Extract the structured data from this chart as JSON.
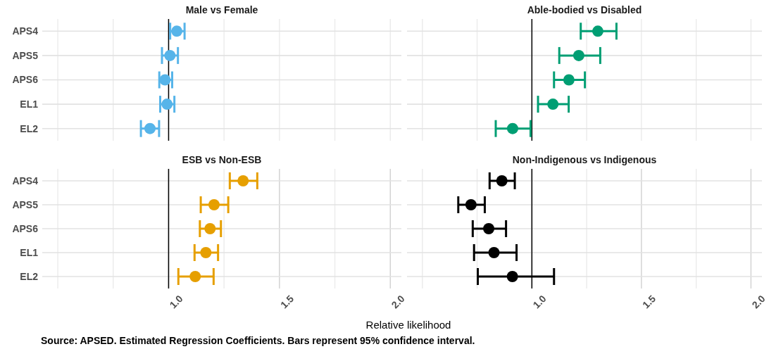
{
  "chart_data": [
    {
      "type": "scatter",
      "title": "Male vs Female",
      "orientation": "horizontal",
      "categories": [
        "APS4",
        "APS5",
        "APS6",
        "EL1",
        "EL2"
      ],
      "marker": "circle",
      "grid": true,
      "tick_labels": "y",
      "xlim": [
        0.43,
        2.05
      ],
      "xticks": [
        {
          "value": 0.5,
          "label": null
        },
        {
          "value": 0.75,
          "label": null
        },
        {
          "value": 1.0,
          "label": null
        },
        {
          "value": 1.25,
          "label": null
        },
        {
          "value": 1.5,
          "label": null
        },
        {
          "value": 1.75,
          "label": null
        },
        {
          "value": 2.0,
          "label": null
        }
      ],
      "ref_lines": [
        {
          "axis": "x",
          "value": 1,
          "color": "#000000"
        }
      ],
      "series": [
        {
          "color": "#56b4e9",
          "values": [
            1.037,
            1.006,
            0.984,
            0.993,
            0.916
          ],
          "errors": [
            [
              1.007,
              1.072
            ],
            [
              0.97,
              1.042
            ],
            [
              0.958,
              1.016
            ],
            [
              0.962,
              1.026
            ],
            [
              0.875,
              0.957
            ]
          ]
        }
      ]
    },
    {
      "type": "scatter",
      "title": "Able-bodied vs Disabled",
      "orientation": "horizontal",
      "categories": [
        null,
        null,
        null,
        null,
        null
      ],
      "marker": "circle",
      "grid": true,
      "tick_labels": false,
      "xlim": [
        0.43,
        2.05
      ],
      "xticks": [
        {
          "value": 0.5,
          "label": null
        },
        {
          "value": 0.75,
          "label": null
        },
        {
          "value": 1.0,
          "label": null
        },
        {
          "value": 1.25,
          "label": null
        },
        {
          "value": 1.5,
          "label": null
        },
        {
          "value": 1.75,
          "label": null
        },
        {
          "value": 2.0,
          "label": null
        }
      ],
      "ref_lines": [
        {
          "axis": "x",
          "value": 1,
          "color": "#000000"
        }
      ],
      "series": [
        {
          "color": "#009e73",
          "values": [
            1.301,
            1.214,
            1.169,
            1.096,
            0.912
          ],
          "errors": [
            [
              1.223,
              1.386
            ],
            [
              1.125,
              1.312
            ],
            [
              1.101,
              1.242
            ],
            [
              1.028,
              1.168
            ],
            [
              0.835,
              0.994
            ]
          ]
        }
      ]
    },
    {
      "type": "scatter",
      "title": "ESB vs Non-ESB",
      "orientation": "horizontal",
      "categories": [
        "APS4",
        "APS5",
        "APS6",
        "EL1",
        "EL2"
      ],
      "marker": "circle",
      "grid": true,
      "xlabel": "Relative likelihood",
      "annotations": [
        "Source: APSED. Estimated Regression Coefficients. Bars represent 95% confidence interval."
      ],
      "xlim": [
        0.43,
        2.05
      ],
      "xticks": [
        {
          "value": 0.5,
          "label": null
        },
        {
          "value": 0.75,
          "label": null
        },
        {
          "value": 1.0,
          "label": "1.0"
        },
        {
          "value": 1.25,
          "label": null
        },
        {
          "value": 1.5,
          "label": "1.5"
        },
        {
          "value": 1.75,
          "label": null
        },
        {
          "value": 2.0,
          "label": "2.0"
        }
      ],
      "ref_lines": [
        {
          "axis": "x",
          "value": 1,
          "color": "#000000"
        }
      ],
      "series": [
        {
          "color": "#e69f00",
          "values": [
            1.336,
            1.205,
            1.187,
            1.168,
            1.12
          ],
          "errors": [
            [
              1.276,
              1.4
            ],
            [
              1.145,
              1.269
            ],
            [
              1.141,
              1.236
            ],
            [
              1.117,
              1.223
            ],
            [
              1.044,
              1.203
            ]
          ]
        }
      ]
    },
    {
      "type": "scatter",
      "title": "Non-Indigenous vs Indigenous",
      "orientation": "horizontal",
      "categories": [
        null,
        null,
        null,
        null,
        null
      ],
      "marker": "circle",
      "grid": true,
      "tick_labels": "x",
      "xlim": [
        0.43,
        2.05
      ],
      "xticks": [
        {
          "value": 0.5,
          "label": null
        },
        {
          "value": 0.75,
          "label": null
        },
        {
          "value": 1.0,
          "label": "1.0"
        },
        {
          "value": 1.25,
          "label": null
        },
        {
          "value": 1.5,
          "label": "1.5"
        },
        {
          "value": 1.75,
          "label": null
        },
        {
          "value": 2.0,
          "label": "2.0"
        }
      ],
      "ref_lines": [
        {
          "axis": "x",
          "value": 1,
          "color": "#000000"
        }
      ],
      "series": [
        {
          "color": "#000000",
          "values": [
            0.863,
            0.722,
            0.803,
            0.827,
            0.911
          ],
          "errors": [
            [
              0.807,
              0.922
            ],
            [
              0.664,
              0.785
            ],
            [
              0.73,
              0.882
            ],
            [
              0.736,
              0.93
            ],
            [
              0.753,
              1.101
            ]
          ]
        }
      ]
    }
  ]
}
